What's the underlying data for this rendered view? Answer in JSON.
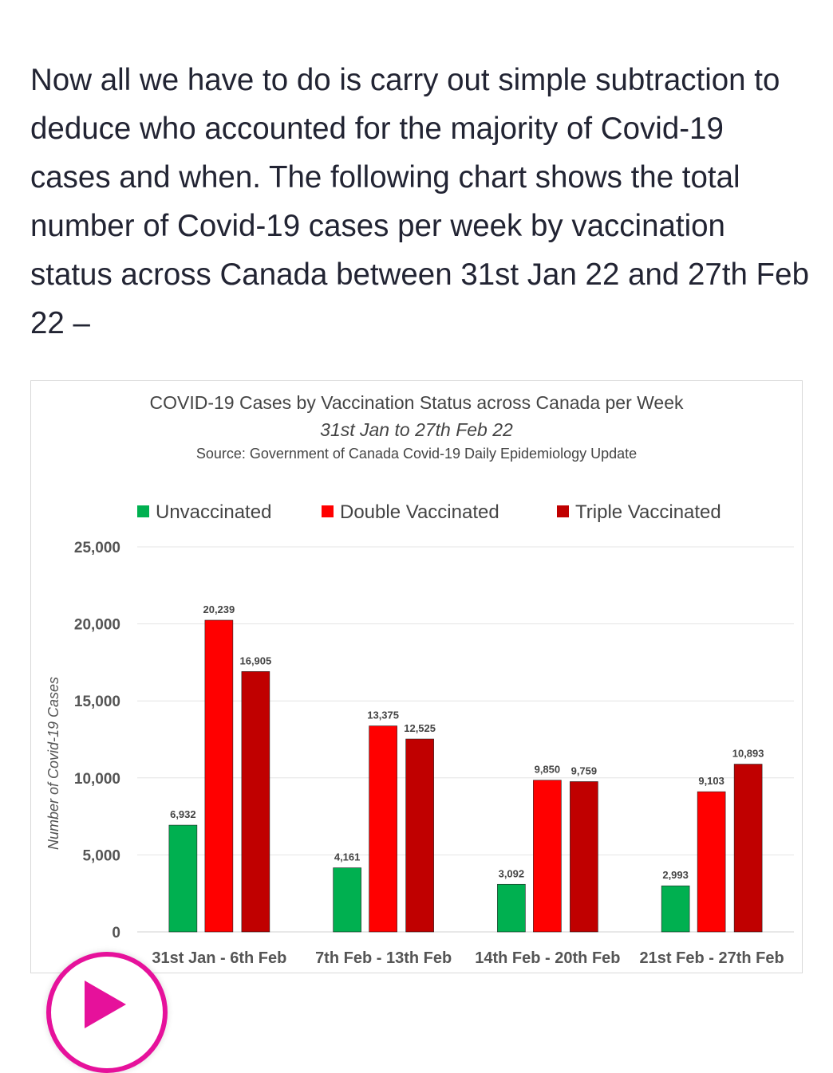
{
  "article": {
    "paragraph": "Now all we have to do is carry out simple subtraction to deduce who accounted for the majority of Covid-19 cases and when. The following chart shows the total number of Covid-19 cases per week by vaccination status across Canada between 31st Jan 22 and 27th Feb 22 –"
  },
  "chart_data": {
    "type": "bar",
    "title": "COVID-19 Cases by Vaccination Status across Canada per Week",
    "subtitle": "31st Jan to 27th Feb 22",
    "source": "Source: Government of Canada  Covid-19 Daily Epidemiology Update",
    "xlabel": "",
    "ylabel": "Number of Covid-19 Cases",
    "ylim": [
      0,
      25000
    ],
    "yticks": [
      0,
      5000,
      10000,
      15000,
      20000,
      25000
    ],
    "ytick_labels": [
      "0",
      "5,000",
      "10,000",
      "15,000",
      "20,000",
      "25,000"
    ],
    "grid": true,
    "legend_position": "top",
    "categories": [
      "31st Jan - 6th Feb",
      "7th Feb - 13th Feb",
      "14th Feb - 20th Feb",
      "21st Feb - 27th Feb"
    ],
    "series": [
      {
        "name": "Unvaccinated",
        "color": "#00b050",
        "values": [
          6932,
          4161,
          3092,
          2993
        ],
        "labels": [
          "6,932",
          "4,161",
          "3,092",
          "2,993"
        ]
      },
      {
        "name": "Double Vaccinated",
        "color": "#ff0000",
        "values": [
          20239,
          13375,
          9850,
          9103
        ],
        "labels": [
          "20,239",
          "13,375",
          "9,850",
          "9,103"
        ]
      },
      {
        "name": "Triple Vaccinated",
        "color": "#c00000",
        "values": [
          16905,
          12525,
          9759,
          10893
        ],
        "labels": [
          "16,905",
          "12,525",
          "9,759",
          "10,893"
        ]
      }
    ]
  },
  "video": {
    "icon": "play-icon",
    "color": "#e6119b"
  }
}
